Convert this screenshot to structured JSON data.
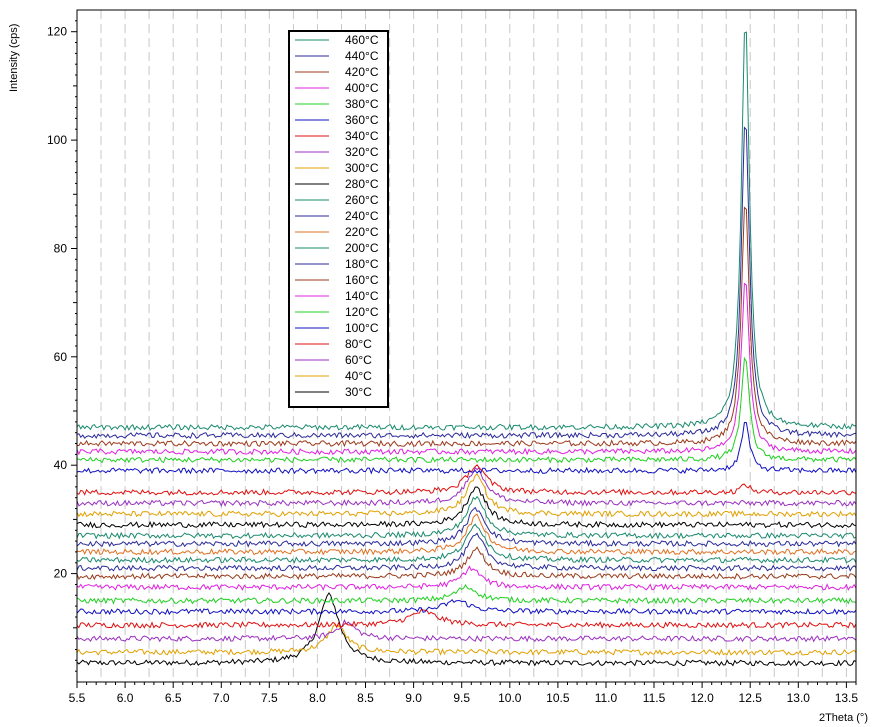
{
  "chart_data": {
    "type": "line",
    "title": "",
    "xlabel": "2Theta (°)",
    "ylabel": "Intensity (cps)",
    "xlim": [
      5.5,
      13.6
    ],
    "ylim": [
      0,
      124
    ],
    "x_ticks": [
      5.5,
      6.0,
      6.5,
      7.0,
      7.5,
      8.0,
      8.5,
      9.0,
      9.5,
      10.0,
      10.5,
      11.0,
      11.5,
      12.0,
      12.5,
      13.0,
      13.5
    ],
    "x_tick_labels": [
      "5.5",
      "6.0",
      "6.5",
      "7.0",
      "7.5",
      "8.0",
      "8.5",
      "9.0",
      "9.5",
      "10.0",
      "10.5",
      "11.0",
      "11.5",
      "12.0",
      "12.5",
      "13.0",
      "13.5"
    ],
    "y_ticks": [
      20,
      40,
      60,
      80,
      100,
      120
    ],
    "y_tick_labels": [
      "20",
      "40",
      "60",
      "80",
      "100",
      "120"
    ],
    "grid": "vertical dashed",
    "legend_position": "top-left",
    "description_of_peaks": "Peak near 8.1 at low temperature shifts to ~9.6 from 80°C to 340°C; strong peak at ~12.45 appears from 340°C and grows with temperature",
    "series": [
      {
        "name": "460°C",
        "color": "#1a8a6e",
        "baseline": 47,
        "peaks": [
          [
            12.45,
            76,
            0.05
          ]
        ]
      },
      {
        "name": "440°C",
        "color": "#2a2a9a",
        "baseline": 45.5,
        "peaks": [
          [
            12.45,
            59,
            0.05
          ]
        ]
      },
      {
        "name": "420°C",
        "color": "#9a3a1a",
        "baseline": 44,
        "peaks": [
          [
            12.45,
            45,
            0.05
          ]
        ]
      },
      {
        "name": "400°C",
        "color": "#e020e0",
        "baseline": 42.5,
        "peaks": [
          [
            12.45,
            32,
            0.05
          ]
        ]
      },
      {
        "name": "380°C",
        "color": "#20d020",
        "baseline": 41,
        "peaks": [
          [
            12.45,
            19,
            0.05
          ]
        ]
      },
      {
        "name": "360°C",
        "color": "#1010c0",
        "baseline": 39,
        "peaks": [
          [
            12.45,
            9,
            0.05
          ]
        ]
      },
      {
        "name": "340°C",
        "color": "#e01010",
        "baseline": 35,
        "peaks": [
          [
            9.65,
            5,
            0.12
          ],
          [
            12.45,
            1.5,
            0.05
          ]
        ]
      },
      {
        "name": "320°C",
        "color": "#9a30c0",
        "baseline": 33,
        "peaks": [
          [
            9.65,
            6.5,
            0.12
          ]
        ]
      },
      {
        "name": "300°C",
        "color": "#e0a000",
        "baseline": 31,
        "peaks": [
          [
            9.65,
            7,
            0.12
          ]
        ]
      },
      {
        "name": "280°C",
        "color": "#000000",
        "baseline": 29,
        "peaks": [
          [
            9.65,
            7,
            0.12
          ]
        ]
      },
      {
        "name": "260°C",
        "color": "#1a8a6e",
        "baseline": 27,
        "peaks": [
          [
            9.65,
            7,
            0.12
          ]
        ]
      },
      {
        "name": "240°C",
        "color": "#2a2a9a",
        "baseline": 25.5,
        "peaks": [
          [
            9.65,
            6.5,
            0.12
          ]
        ]
      },
      {
        "name": "220°C",
        "color": "#e07020",
        "baseline": 24,
        "peaks": [
          [
            9.65,
            6.5,
            0.12
          ]
        ]
      },
      {
        "name": "200°C",
        "color": "#1a8a6e",
        "baseline": 22.5,
        "peaks": [
          [
            9.65,
            6.5,
            0.12
          ]
        ]
      },
      {
        "name": "180°C",
        "color": "#2a2a9a",
        "baseline": 21,
        "peaks": [
          [
            9.65,
            6,
            0.12
          ]
        ]
      },
      {
        "name": "160°C",
        "color": "#9a3a1a",
        "baseline": 19.5,
        "peaks": [
          [
            9.65,
            5,
            0.12
          ]
        ]
      },
      {
        "name": "140°C",
        "color": "#e020e0",
        "baseline": 17.5,
        "peaks": [
          [
            9.6,
            3.5,
            0.12
          ]
        ]
      },
      {
        "name": "120°C",
        "color": "#20d020",
        "baseline": 15,
        "peaks": [
          [
            9.55,
            2.5,
            0.14
          ]
        ]
      },
      {
        "name": "100°C",
        "color": "#1010c0",
        "baseline": 13,
        "peaks": [
          [
            9.45,
            2,
            0.16
          ]
        ]
      },
      {
        "name": "80°C",
        "color": "#e01010",
        "baseline": 10.5,
        "peaks": [
          [
            9.1,
            2.5,
            0.18
          ]
        ]
      },
      {
        "name": "60°C",
        "color": "#9a30c0",
        "baseline": 8,
        "peaks": [
          [
            8.3,
            3,
            0.12
          ]
        ]
      },
      {
        "name": "40°C",
        "color": "#e0a000",
        "baseline": 5.5,
        "peaks": [
          [
            8.2,
            5,
            0.12
          ]
        ]
      },
      {
        "name": "30°C",
        "color": "#000000",
        "baseline": 3.5,
        "peaks": [
          [
            8.12,
            12.5,
            0.13
          ]
        ]
      }
    ]
  }
}
